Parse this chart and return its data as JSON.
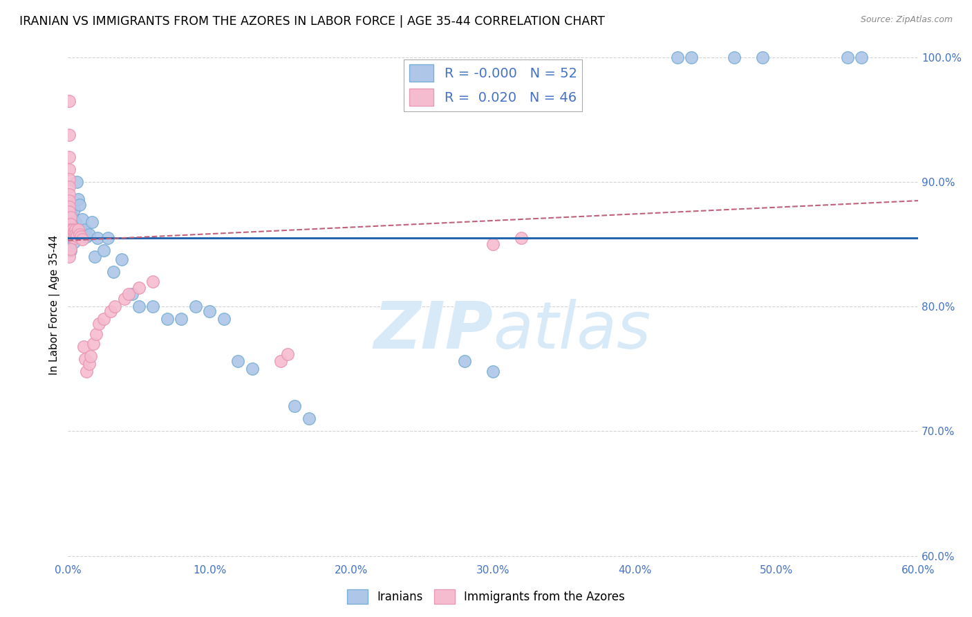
{
  "title": "IRANIAN VS IMMIGRANTS FROM THE AZORES IN LABOR FORCE | AGE 35-44 CORRELATION CHART",
  "source": "Source: ZipAtlas.com",
  "ylabel": "In Labor Force | Age 35-44",
  "xlim": [
    0.0,
    0.6
  ],
  "ylim": [
    0.595,
    1.008
  ],
  "xticks": [
    0.0,
    0.1,
    0.2,
    0.3,
    0.4,
    0.5,
    0.6
  ],
  "xticklabels": [
    "0.0%",
    "10.0%",
    "20.0%",
    "30.0%",
    "40.0%",
    "50.0%",
    "60.0%"
  ],
  "yticks": [
    0.6,
    0.7,
    0.8,
    0.9,
    1.0
  ],
  "yticklabels": [
    "60.0%",
    "70.0%",
    "80.0%",
    "90.0%",
    "100.0%"
  ],
  "blue_color": "#aec6e8",
  "blue_edge_color": "#7aafd4",
  "pink_color": "#f5bcd0",
  "pink_edge_color": "#e899b4",
  "trend_blue_color": "#2565ae",
  "trend_pink_color": "#c0607a",
  "legend_R_blue": "-0.000",
  "legend_N_blue": "52",
  "legend_R_pink": "0.020",
  "legend_N_pink": "46",
  "grid_color": "#c8c8c8",
  "watermark_color": "#d8eaf8",
  "title_fontsize": 12.5,
  "axis_label_fontsize": 11,
  "tick_fontsize": 11,
  "blue_trend_y0": 0.855,
  "blue_trend_y1": 0.855,
  "pink_trend_y0": 0.853,
  "pink_trend_y1": 0.885,
  "blue_scatter_x": [
    0.001,
    0.001,
    0.001,
    0.001,
    0.001,
    0.002,
    0.002,
    0.002,
    0.002,
    0.003,
    0.003,
    0.003,
    0.004,
    0.004,
    0.005,
    0.005,
    0.006,
    0.007,
    0.008,
    0.009,
    0.01,
    0.011,
    0.012,
    0.013,
    0.015,
    0.017,
    0.019,
    0.021,
    0.025,
    0.028,
    0.032,
    0.038,
    0.045,
    0.05,
    0.06,
    0.07,
    0.08,
    0.09,
    0.1,
    0.11,
    0.12,
    0.13,
    0.16,
    0.17,
    0.28,
    0.3,
    0.43,
    0.44,
    0.47,
    0.49,
    0.55,
    0.56
  ],
  "blue_scatter_y": [
    0.88,
    0.87,
    0.862,
    0.856,
    0.848,
    0.875,
    0.868,
    0.858,
    0.845,
    0.872,
    0.865,
    0.858,
    0.878,
    0.852,
    0.868,
    0.86,
    0.9,
    0.886,
    0.882,
    0.862,
    0.87,
    0.858,
    0.862,
    0.856,
    0.858,
    0.868,
    0.84,
    0.855,
    0.845,
    0.855,
    0.828,
    0.838,
    0.81,
    0.8,
    0.8,
    0.79,
    0.79,
    0.8,
    0.796,
    0.79,
    0.756,
    0.75,
    0.72,
    0.71,
    0.756,
    0.748,
    1.0,
    1.0,
    1.0,
    1.0,
    1.0,
    1.0
  ],
  "pink_scatter_x": [
    0.001,
    0.001,
    0.001,
    0.001,
    0.001,
    0.001,
    0.001,
    0.001,
    0.001,
    0.001,
    0.002,
    0.002,
    0.002,
    0.002,
    0.003,
    0.003,
    0.004,
    0.004,
    0.005,
    0.005,
    0.006,
    0.007,
    0.008,
    0.009,
    0.01,
    0.011,
    0.012,
    0.013,
    0.015,
    0.016,
    0.018,
    0.02,
    0.022,
    0.025,
    0.03,
    0.033,
    0.04,
    0.043,
    0.05,
    0.06,
    0.15,
    0.155,
    0.3,
    0.32,
    0.001,
    0.002
  ],
  "pink_scatter_y": [
    0.965,
    0.938,
    0.92,
    0.91,
    0.902,
    0.896,
    0.89,
    0.885,
    0.88,
    0.876,
    0.872,
    0.866,
    0.862,
    0.858,
    0.862,
    0.856,
    0.86,
    0.855,
    0.862,
    0.858,
    0.857,
    0.862,
    0.858,
    0.856,
    0.854,
    0.768,
    0.758,
    0.748,
    0.754,
    0.76,
    0.77,
    0.778,
    0.786,
    0.79,
    0.796,
    0.8,
    0.806,
    0.81,
    0.815,
    0.82,
    0.756,
    0.762,
    0.85,
    0.855,
    0.84,
    0.846
  ]
}
